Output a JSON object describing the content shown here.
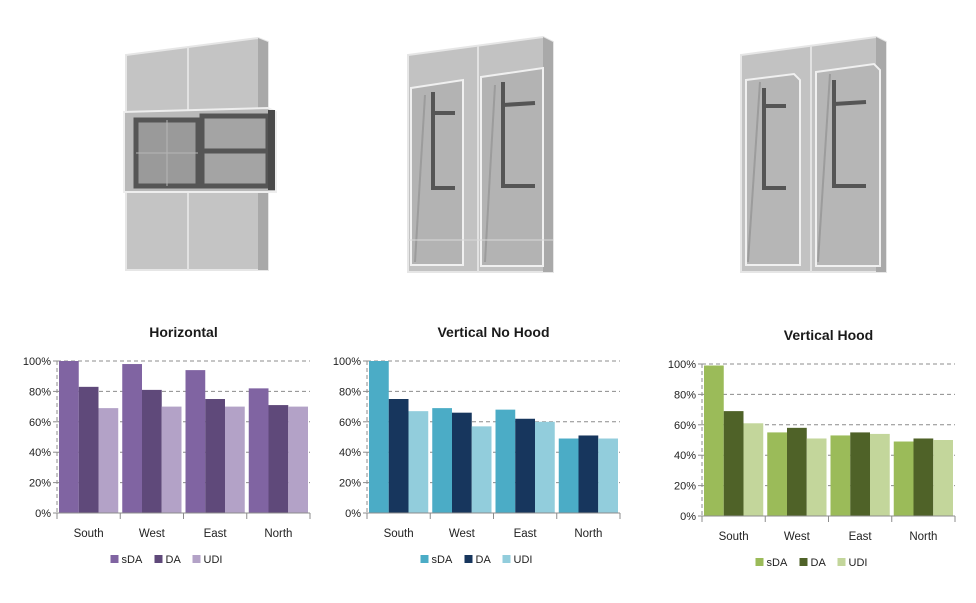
{
  "illustrations": [
    {
      "name": "horizontal-shading-facade"
    },
    {
      "name": "vertical-no-hood-facade"
    },
    {
      "name": "vertical-hood-facade"
    }
  ],
  "chart_data": [
    {
      "type": "bar",
      "title": "Horizontal",
      "categories": [
        "South",
        "West",
        "East",
        "North"
      ],
      "ylim": [
        0,
        100
      ],
      "yticks": [
        "0%",
        "20%",
        "40%",
        "60%",
        "80%",
        "100%"
      ],
      "grid": true,
      "legend_position": "bottom",
      "series": [
        {
          "name": "sDA",
          "color": "#8064a2",
          "values": [
            100,
            98,
            94,
            82
          ]
        },
        {
          "name": "DA",
          "color": "#5f497a",
          "values": [
            83,
            81,
            75,
            71
          ]
        },
        {
          "name": "UDI",
          "color": "#b3a2c7",
          "values": [
            69,
            70,
            70,
            70
          ]
        }
      ]
    },
    {
      "type": "bar",
      "title": "Vertical No Hood",
      "categories": [
        "South",
        "West",
        "East",
        "North"
      ],
      "ylim": [
        0,
        100
      ],
      "yticks": [
        "0%",
        "20%",
        "40%",
        "60%",
        "80%",
        "100%"
      ],
      "grid": true,
      "legend_position": "bottom",
      "series": [
        {
          "name": "sDA",
          "color": "#4bacc6",
          "values": [
            100,
            69,
            68,
            49
          ]
        },
        {
          "name": "DA",
          "color": "#17365d",
          "values": [
            75,
            66,
            62,
            51
          ]
        },
        {
          "name": "UDI",
          "color": "#92cddc",
          "values": [
            67,
            57,
            60,
            49
          ]
        }
      ]
    },
    {
      "type": "bar",
      "title": "Vertical Hood",
      "categories": [
        "South",
        "West",
        "East",
        "North"
      ],
      "ylim": [
        0,
        100
      ],
      "yticks": [
        "0%",
        "20%",
        "40%",
        "60%",
        "80%",
        "100%"
      ],
      "grid": true,
      "legend_position": "bottom",
      "series": [
        {
          "name": "sDA",
          "color": "#9bbb59",
          "values": [
            99,
            55,
            53,
            49
          ]
        },
        {
          "name": "DA",
          "color": "#4f6228",
          "values": [
            69,
            58,
            55,
            51
          ]
        },
        {
          "name": "UDI",
          "color": "#c3d69b",
          "values": [
            61,
            51,
            54,
            50
          ]
        }
      ]
    }
  ]
}
